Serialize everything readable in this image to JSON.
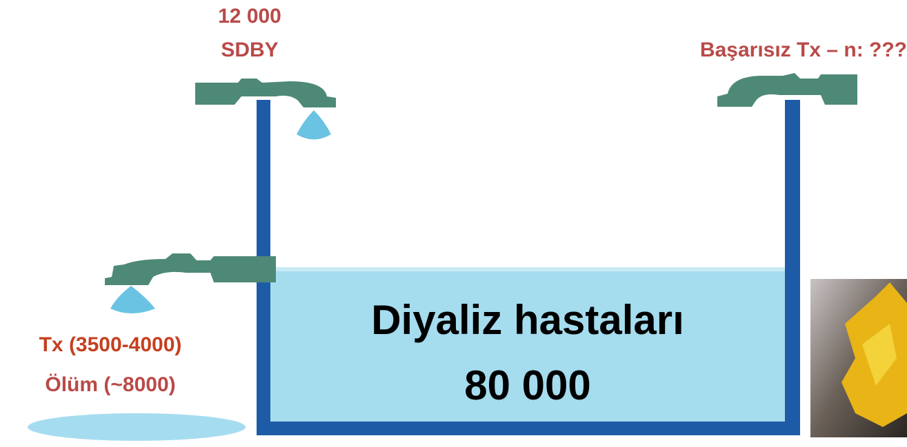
{
  "inflow": {
    "value": "12 000",
    "label": "SDBY"
  },
  "return_inflow": {
    "label": "Başarısız Tx – n: ???"
  },
  "outflow": {
    "transplant": "Tx (3500-4000)",
    "death": "Ölüm (~8000)"
  },
  "tank": {
    "label": "Diyaliz hastaları",
    "value": "80 000"
  }
}
